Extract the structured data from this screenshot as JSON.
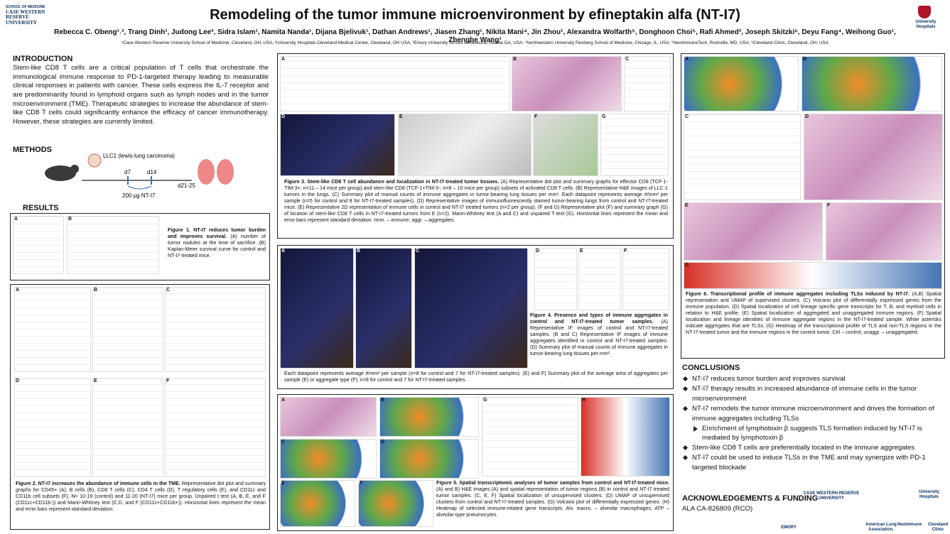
{
  "header": {
    "logo_left": [
      "SCHOOL OF MEDICINE",
      "CASE WESTERN RESERVE UNIVERSITY"
    ],
    "logo_right": "University Hospitals",
    "title": "Remodeling of the tumor immune microenvironment by efineptakin alfa (NT-I7)",
    "authors": "Rebecca C. Obeng¹˒², Trang Dinh¹, Judong Lee³, Sidra Islam¹, Namita Nanda¹, Dijana Bjelivuk¹, Dathan Andrews¹, Jiasen Zhang¹, Nikita Mani⁴, Jin Zhou¹, Alexandra Wolfarth⁵, Donghoon Choi⁵, Rafi Ahmed³, Joseph Skitzki⁶, Deyu Fang⁴, Weihong Guo¹, Zhenghe Wang¹",
    "affiliations": "¹Case Western Reserve University School of Medicine, Cleveland, OH, USA; ²University Hospitals Cleveland Medical Center, Cleveland, OH USA; ³Emory University School of Medicine, Atlanta GA, USA; ⁴Northwestern University Feinberg School of Medicine, Chicago, IL, USA; ⁵NeoImmuneTech, Rockville, MD, USA; ⁶Cleveland Clinic, Cleveland, OH, USA"
  },
  "introduction": {
    "heading": "INTRODUCTION",
    "text": "Stem-like CD8 T cells are a critical population of T cells that orchestrate the immunological immune response to PD-1-targeted therapy leading to measurable clinical responses in patients with cancer. These cells express the IL-7 receptor and are predominantly found in lymphoid organs such as lymph nodes and in the tumor microenvironment (TME). Therapeutic strategies to increase the abundance of stem-like CD8 T cells could significantly enhance the efficacy of cancer immunotherapy. However, these strategies are currently limited."
  },
  "methods": {
    "heading": "METHODS",
    "model": "LLC1 (lewis lung carcinoma)",
    "timepoints": [
      "d7",
      "d14",
      "d21-25"
    ],
    "dose": "200 µg NT-I7"
  },
  "results": {
    "heading": "RESULTS"
  },
  "figures": {
    "fig1": {
      "panels": [
        "A",
        "B"
      ],
      "title": "Figure 1. NT-I7 reduces tumor burden and improves survival.",
      "text": " (A) number of tumor nodules at the time of sacrifice. (B) Kaplan-Meier survival curve for control and NT-I7-treated mice."
    },
    "fig2": {
      "panels": [
        "A",
        "B",
        "C",
        "D",
        "E",
        "F"
      ],
      "title": "Figure 2. NT-I7 increases the abundance of immune cells in the TME.",
      "text": " Representative dot plot and summary graphs for CD45+ (A), B cells (B), CD8 T cells (C), CD4 T cells (D), T regulatory cells (E), and CD11c and CD11b cell subsets (F). N= 10-19 (control) and 11-20 (NT-I7) mice per group. Unpaired t test (A, B, E, and F (CD11c+CD11b-)) and Mann-Whitney test (C,D, and F (CD11c+CD11b+)). Horizontal lines represent the mean and error bars represent standard deviation."
    },
    "fig3": {
      "panels": [
        "A",
        "B",
        "C",
        "D",
        "E",
        "F",
        "G"
      ],
      "title": "Figure 3. Stem-like CD8 T cell abundance and localization in NT-I7-treated tumor tissues.",
      "text": " (A) Representative dot plot and summary graphs for effector CD8 (TCF-1-TIM-3+; n=11 – 14 mice per group) and stem-like CD8 (TCF-1+TIM-3-; n=8 – 10 mice per group) subsets of activated CD8 T cells. (B) Representative H&E images of LLC-1 tumors in the lungs. (C) Summary plot of manual counts of immune aggregates in tumor-bearing lung tissues per mm². Each datapoint represents average #/mm² per sample (n=5 for control and 8 for NT-I7-treated samples). (D) Representative images of immunofluorescently stained tumor-bearing lungs from control and NT-I7-treated mice. (E) Representative 2D representation of immune cells in control and NT-I7 treated tumors (n=2 per group). (F and G) Representative plot (F) and summary graph (G) of location of stem-like CD8 T cells in NT-I7-treated tumors from E (n=2). Mann-Whitney test (A and C) and unpaired T test (G). Horizontal lines represent the mean and error bars represent standard deviation. Imm. – immune; aggr. – aggregates."
    },
    "fig4": {
      "panels": [
        "A",
        "B",
        "C",
        "D",
        "E",
        "F"
      ],
      "title": "Figure 4. Presence and types of immune aggregates in control and NT-I7-treated tumor samples.",
      "text": " (A) Representative IF images of control and NT-I7-treated samples. (B and C) Representative IF images of immune aggregates identified in control and NT-I7-treated samples. (D) Summary plot of manual counts of immune aggregates in tumor-bearing lung tissues per mm².",
      "text2": "Each datapoint represents average #/mm² per sample (n=8 for control and 7 for NT-I7-treated samples). (E) and F) Summary plot of the average area of aggregates per sample (E) or aggregate type (F); n=8 for control and 7 for NT-I7-treated samples."
    },
    "fig5": {
      "panels": [
        "A",
        "B",
        "C",
        "D",
        "E",
        "F",
        "G",
        "H"
      ],
      "title": "Figure 5. Spatial transcriptomic analyses of tumor samples from control and NT-I7-treated mice.",
      "text": " (A) and B) H&E images (A) and spatial representation of tumor regions (B) in control and NT-I7 treated tumor samples. (C, E, F) Spatial localization of unsupervised clusters. (D) UMAP of unsupervised clusters from control and NT-I7-treated samples. (G) Volcano plot of differentially expressed genes. (H) Heatmap of selected immune-related gene transcripts. Alv. macro. – alveolar macrophages; ATP – alveolar type pneumocytes."
    },
    "fig6": {
      "panels": [
        "A",
        "B",
        "C",
        "D",
        "E",
        "F",
        "G"
      ],
      "title": "Figure 6. Transcriptional profile of immune aggregates including TLSs induced by NT-I7.",
      "text": " (A,B) Spatial representation and UMAP of supervised clusters. (C) Volcano plot of differentially expressed genes from the immune population. (D) Spatial localization of cell lineage specific gene transcripts for T, B, and myeloid cells in relation to H&E profile. (E) Spatial localization of aggregated and unaggregated immune regions. (F) Spatial localization and lineage identities of immune aggregate regions in the NT-I7-treated sample. White asterisks indicate aggregates that are TLSs. (G) Heatmap of the transcriptional profile of TLS and non-TLS regions in the NT-I7-treated tumor and the immune regions in the control tumor. Ctrl – control; unaggr. – unaggregated."
    }
  },
  "conclusions": {
    "heading": "CONCLUSIONS",
    "items": [
      "NT-I7 reduces tumor burden and improves survival",
      "NT-I7 therapy results in increased abundance of immune cells in the tumor microenvironment",
      "NT-I7 remodels the tumor immune microenvironment and drives the formation of immune aggregates including TLSs",
      "Enrichment of lymphotoxin β suggests TLS formation induced by NT-I7 is mediated by lymphotoxin β",
      "Stem-like CD8 T cells are preferentially located in the immune aggregates",
      "NT-I7 could be used to induce TLSs in the TME and may synergize with PD-1 targeted blockade"
    ]
  },
  "acknowledgements": {
    "heading": "ACKNOWLEDGEMENTS & FUNDING",
    "text": "ALA CA-826809 (RCO)",
    "logos": [
      "CASE WESTERN RESERVE UNIVERSITY",
      "University Hospitals",
      "EMORY",
      "American Lung Association.",
      "NeoImmune",
      "Cleveland Clinic"
    ]
  }
}
